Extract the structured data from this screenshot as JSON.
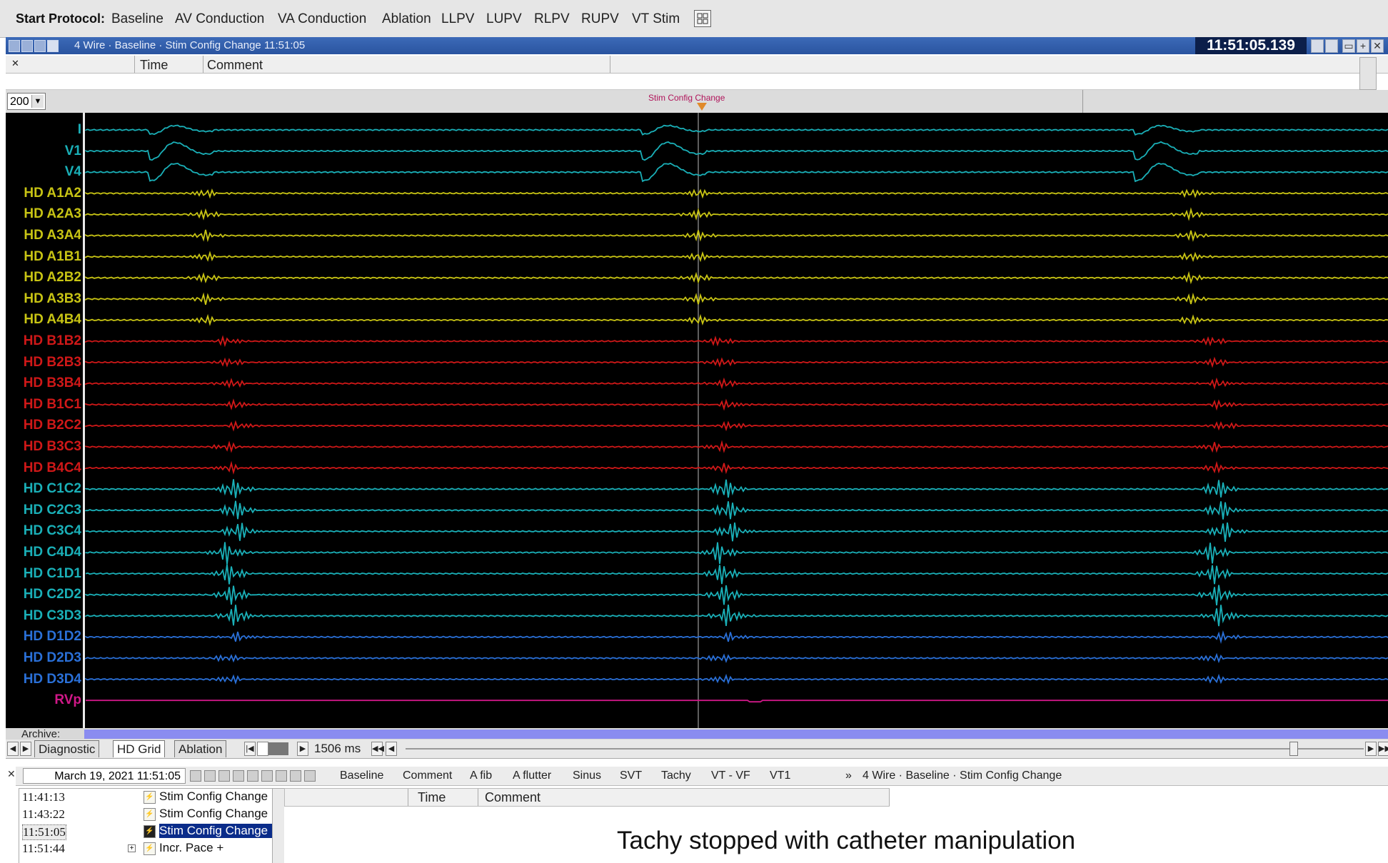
{
  "protocol_bar": {
    "label": "Start Protocol:",
    "buttons": [
      "Baseline",
      "AV Conduction",
      "VA Conduction",
      "Ablation",
      "LLPV",
      "LUPV",
      "RLPV",
      "RUPV",
      "VT Stim"
    ]
  },
  "title_bar": {
    "title": "4 Wire  ·  Baseline  ·  Stim Config Change   11:51:05",
    "clock": "11:51:05.139"
  },
  "comment_header": {
    "time_col": "Time",
    "comment_col": "Comment"
  },
  "speed": {
    "value": "200"
  },
  "event_marker": {
    "label": "Stim Config Change"
  },
  "channels": [
    {
      "label": "I",
      "color": "#1ab0b8"
    },
    {
      "label": "V1",
      "color": "#1ab0b8"
    },
    {
      "label": "V4",
      "color": "#1ab0b8"
    },
    {
      "label": "HD A1A2",
      "color": "#c8c414"
    },
    {
      "label": "HD A2A3",
      "color": "#c8c414"
    },
    {
      "label": "HD A3A4",
      "color": "#c8c414"
    },
    {
      "label": "HD A1B1",
      "color": "#c8c414"
    },
    {
      "label": "HD A2B2",
      "color": "#c8c414"
    },
    {
      "label": "HD A3B3",
      "color": "#c8c414"
    },
    {
      "label": "HD A4B4",
      "color": "#c8c414"
    },
    {
      "label": "HD B1B2",
      "color": "#d01818"
    },
    {
      "label": "HD B2B3",
      "color": "#d01818"
    },
    {
      "label": "HD B3B4",
      "color": "#d01818"
    },
    {
      "label": "HD B1C1",
      "color": "#d01818"
    },
    {
      "label": "HD B2C2",
      "color": "#d01818"
    },
    {
      "label": "HD B3C3",
      "color": "#d01818"
    },
    {
      "label": "HD B4C4",
      "color": "#d01818"
    },
    {
      "label": "HD C1C2",
      "color": "#1ab0b8"
    },
    {
      "label": "HD C2C3",
      "color": "#1ab0b8"
    },
    {
      "label": "HD C3C4",
      "color": "#1ab0b8"
    },
    {
      "label": "HD C4D4",
      "color": "#1ab0b8"
    },
    {
      "label": "HD C1D1",
      "color": "#1ab0b8"
    },
    {
      "label": "HD C2D2",
      "color": "#1ab0b8"
    },
    {
      "label": "HD C3D3",
      "color": "#1ab0b8"
    },
    {
      "label": "HD D1D2",
      "color": "#2a70d8"
    },
    {
      "label": "HD D2D3",
      "color": "#2a70d8"
    },
    {
      "label": "HD D3D4",
      "color": "#2a70d8"
    },
    {
      "label": "RVp",
      "color": "#d01888"
    }
  ],
  "archive": {
    "label": "Archive:"
  },
  "tabs": [
    {
      "label": "Diagnostic",
      "active": false
    },
    {
      "label": "HD Grid",
      "active": true
    },
    {
      "label": "Ablation",
      "active": false
    }
  ],
  "duration": "1506 ms",
  "events_toolbar": {
    "date": "March 19, 2021   11:51:05",
    "buttons": [
      "Baseline",
      "Comment",
      "A fib",
      "A flutter",
      "Sinus",
      "SVT",
      "Tachy",
      "VT - VF",
      "VT1"
    ],
    "more": "»",
    "path": "4 Wire  ·  Baseline  ·  Stim Config Change"
  },
  "event_list": [
    {
      "time": "11:41:13",
      "name": "Stim Config Change",
      "selected": false,
      "plus": ""
    },
    {
      "time": "11:43:22",
      "name": "Stim Config Change",
      "selected": false,
      "plus": ""
    },
    {
      "time": "11:51:05",
      "name": "Stim Config Change",
      "selected": true,
      "plus": ""
    },
    {
      "time": "11:51:44",
      "name": "Incr. Pace +",
      "selected": false,
      "plus": "+"
    }
  ],
  "detail_header": {
    "time_col": "Time",
    "comment_col": "Comment"
  },
  "caption": "Tachy stopped with catheter manipulation"
}
